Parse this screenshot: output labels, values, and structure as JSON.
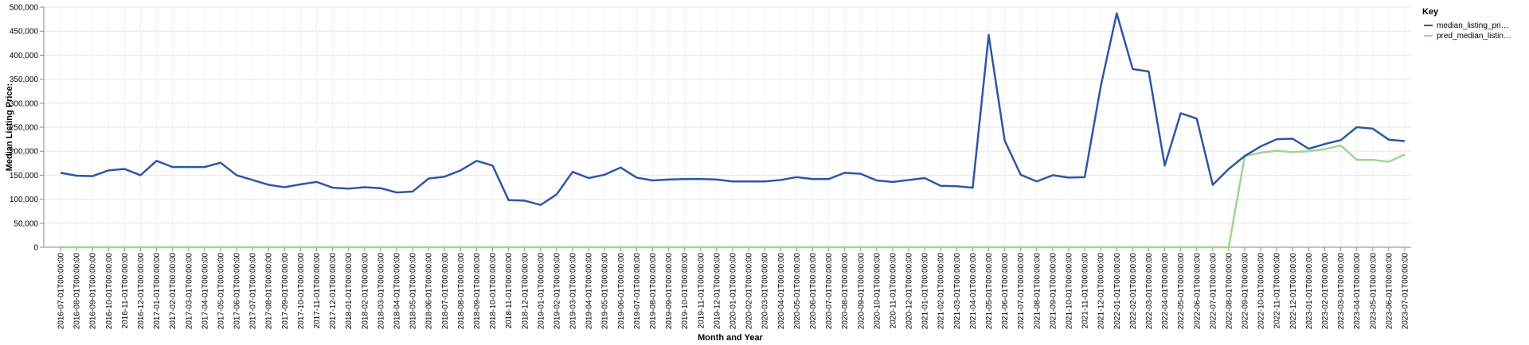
{
  "chart_data": {
    "type": "line",
    "title": "",
    "xlabel": "Month and Year",
    "ylabel": "Median Listing Price:",
    "ylim": [
      0,
      500000
    ],
    "y_ticks": [
      "0",
      "50,000",
      "100,000",
      "150,000",
      "200,000",
      "250,000",
      "300,000",
      "350,000",
      "400,000",
      "450,000",
      "500,000"
    ],
    "grid": true,
    "legend": {
      "title": "Key",
      "placement": "right",
      "labels": [
        "median_listing_pri…",
        "pred_median_listin…"
      ]
    },
    "categories": [
      "2016-07-01T00:00:00",
      "2016-08-01T00:00:00",
      "2016-09-01T00:00:00",
      "2016-10-01T00:00:00",
      "2016-11-01T00:00:00",
      "2016-12-01T00:00:00",
      "2017-01-01T00:00:00",
      "2017-02-01T00:00:00",
      "2017-03-01T00:00:00",
      "2017-04-01T00:00:00",
      "2017-05-01T00:00:00",
      "2017-06-01T00:00:00",
      "2017-07-01T00:00:00",
      "2017-08-01T00:00:00",
      "2017-09-01T00:00:00",
      "2017-10-01T00:00:00",
      "2017-11-01T00:00:00",
      "2017-12-01T00:00:00",
      "2018-01-01T00:00:00",
      "2018-02-01T00:00:00",
      "2018-03-01T00:00:00",
      "2018-04-01T00:00:00",
      "2018-05-01T00:00:00",
      "2018-06-01T00:00:00",
      "2018-07-01T00:00:00",
      "2018-08-01T00:00:00",
      "2018-09-01T00:00:00",
      "2018-10-01T00:00:00",
      "2018-11-01T00:00:00",
      "2018-12-01T00:00:00",
      "2019-01-01T00:00:00",
      "2019-02-01T00:00:00",
      "2019-03-01T00:00:00",
      "2019-04-01T00:00:00",
      "2019-05-01T00:00:00",
      "2019-06-01T00:00:00",
      "2019-07-01T00:00:00",
      "2019-08-01T00:00:00",
      "2019-09-01T00:00:00",
      "2019-10-01T00:00:00",
      "2019-11-01T00:00:00",
      "2019-12-01T00:00:00",
      "2020-01-01T00:00:00",
      "2020-02-01T00:00:00",
      "2020-03-01T00:00:00",
      "2020-04-01T00:00:00",
      "2020-05-01T00:00:00",
      "2020-06-01T00:00:00",
      "2020-07-01T00:00:00",
      "2020-08-01T00:00:00",
      "2020-09-01T00:00:00",
      "2020-10-01T00:00:00",
      "2020-11-01T00:00:00",
      "2020-12-01T00:00:00",
      "2021-01-01T00:00:00",
      "2021-02-01T00:00:00",
      "2021-03-01T00:00:00",
      "2021-04-01T00:00:00",
      "2021-05-01T00:00:00",
      "2021-06-01T00:00:00",
      "2021-07-01T00:00:00",
      "2021-08-01T00:00:00",
      "2021-09-01T00:00:00",
      "2021-10-01T00:00:00",
      "2021-11-01T00:00:00",
      "2021-12-01T00:00:00",
      "2022-01-01T00:00:00",
      "2022-02-01T00:00:00",
      "2022-03-01T00:00:00",
      "2022-04-01T00:00:00",
      "2022-05-01T00:00:00",
      "2022-06-01T00:00:00",
      "2022-07-01T00:00:00",
      "2022-08-01T00:00:00",
      "2022-09-01T00:00:00",
      "2022-10-01T00:00:00",
      "2022-11-01T00:00:00",
      "2022-12-01T00:00:00",
      "2023-01-01T00:00:00",
      "2023-02-01T00:00:00",
      "2023-03-01T00:00:00",
      "2023-04-01T00:00:00",
      "2023-05-01T00:00:00",
      "2023-06-01T00:00:00",
      "2023-07-01T00:00:00"
    ],
    "series": [
      {
        "name": "median_listing_price",
        "color": "#2c57a5",
        "values": [
          155000,
          149000,
          148000,
          160000,
          163000,
          150000,
          180000,
          167000,
          167000,
          167000,
          176000,
          150000,
          140000,
          130000,
          125000,
          131000,
          136000,
          124000,
          122000,
          125000,
          123000,
          114000,
          116000,
          143000,
          147000,
          160000,
          180000,
          170000,
          98000,
          97000,
          88000,
          110000,
          157000,
          144000,
          151000,
          166000,
          145000,
          139000,
          141000,
          142000,
          142000,
          141000,
          137000,
          137000,
          137000,
          140000,
          146000,
          142000,
          142000,
          155000,
          153000,
          139000,
          136000,
          140000,
          144000,
          128000,
          127000,
          124000,
          442000,
          222000,
          151000,
          137000,
          150000,
          145000,
          146000,
          335000,
          487000,
          371000,
          366000,
          170000,
          279000,
          268000,
          130000,
          163000,
          190000,
          210000,
          225000,
          226000,
          205000,
          215000,
          223000,
          250000,
          247000,
          224000,
          221000
        ]
      },
      {
        "name": "pred_median_listing_price",
        "color": "#9ed68f",
        "values": [
          0,
          0,
          0,
          0,
          0,
          0,
          0,
          0,
          0,
          0,
          0,
          0,
          0,
          0,
          0,
          0,
          0,
          0,
          0,
          0,
          0,
          0,
          0,
          0,
          0,
          0,
          0,
          0,
          0,
          0,
          0,
          0,
          0,
          0,
          0,
          0,
          0,
          0,
          0,
          0,
          0,
          0,
          0,
          0,
          0,
          0,
          0,
          0,
          0,
          0,
          0,
          0,
          0,
          0,
          0,
          0,
          0,
          0,
          0,
          0,
          0,
          0,
          0,
          0,
          0,
          0,
          0,
          0,
          0,
          0,
          0,
          0,
          0,
          0,
          190000,
          197000,
          201000,
          198000,
          200000,
          204000,
          212000,
          182000,
          182000,
          178000,
          193000
        ]
      }
    ]
  }
}
